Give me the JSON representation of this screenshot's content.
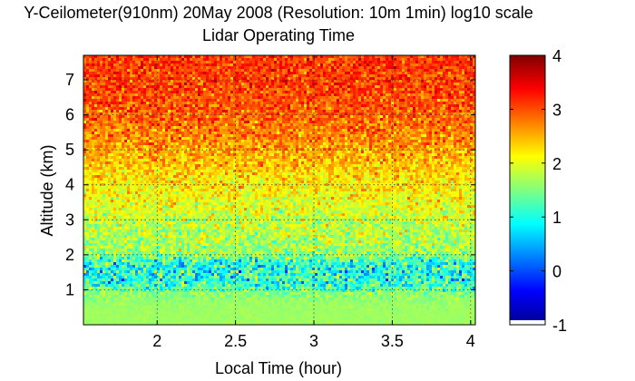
{
  "chart_data": {
    "type": "heatmap",
    "title": "Y-Ceilometer(910nm) 20May 2008 (Resolution: 10m 1min) log10 scale",
    "subtitle": "Lidar Operating Time",
    "xlabel": "Local Time (hour)",
    "ylabel": "Altitude (km)",
    "xlim": [
      1.53,
      4.03
    ],
    "ylim": [
      0,
      7.7
    ],
    "x_ticks": [
      "2",
      "2.5",
      "3",
      "3.5",
      "4"
    ],
    "x_tick_values": [
      2,
      2.5,
      3,
      3.5,
      4
    ],
    "y_ticks": [
      "1",
      "2",
      "3",
      "4",
      "5",
      "6",
      "7"
    ],
    "y_tick_values": [
      1,
      2,
      3,
      4,
      5,
      6,
      7
    ],
    "grid": true,
    "colormap": "jet",
    "colorbar": {
      "min": -1,
      "max": 4,
      "ticks": [
        "-1",
        "0",
        "1",
        "2",
        "3",
        "4"
      ],
      "tick_values": [
        -1,
        0,
        1,
        2,
        3,
        4
      ]
    },
    "altitude_profile": {
      "altitude_km": [
        0.0,
        0.3,
        0.6,
        0.9,
        1.0,
        1.2,
        1.5,
        1.8,
        2.0,
        2.5,
        3.0,
        3.5,
        4.0,
        4.5,
        5.0,
        5.5,
        6.0,
        6.5,
        7.0,
        7.7
      ],
      "mean_log10_value": [
        1.65,
        1.65,
        1.63,
        1.55,
        1.3,
        1.05,
        1.0,
        1.05,
        1.6,
        1.75,
        1.85,
        2.05,
        2.2,
        2.4,
        2.6,
        2.75,
        2.9,
        3.0,
        3.05,
        3.1
      ],
      "spread": [
        0.04,
        0.04,
        0.06,
        0.2,
        0.35,
        0.45,
        0.5,
        0.45,
        0.35,
        0.3,
        0.3,
        0.28,
        0.28,
        0.28,
        0.27,
        0.27,
        0.26,
        0.26,
        0.26,
        0.26
      ]
    }
  }
}
